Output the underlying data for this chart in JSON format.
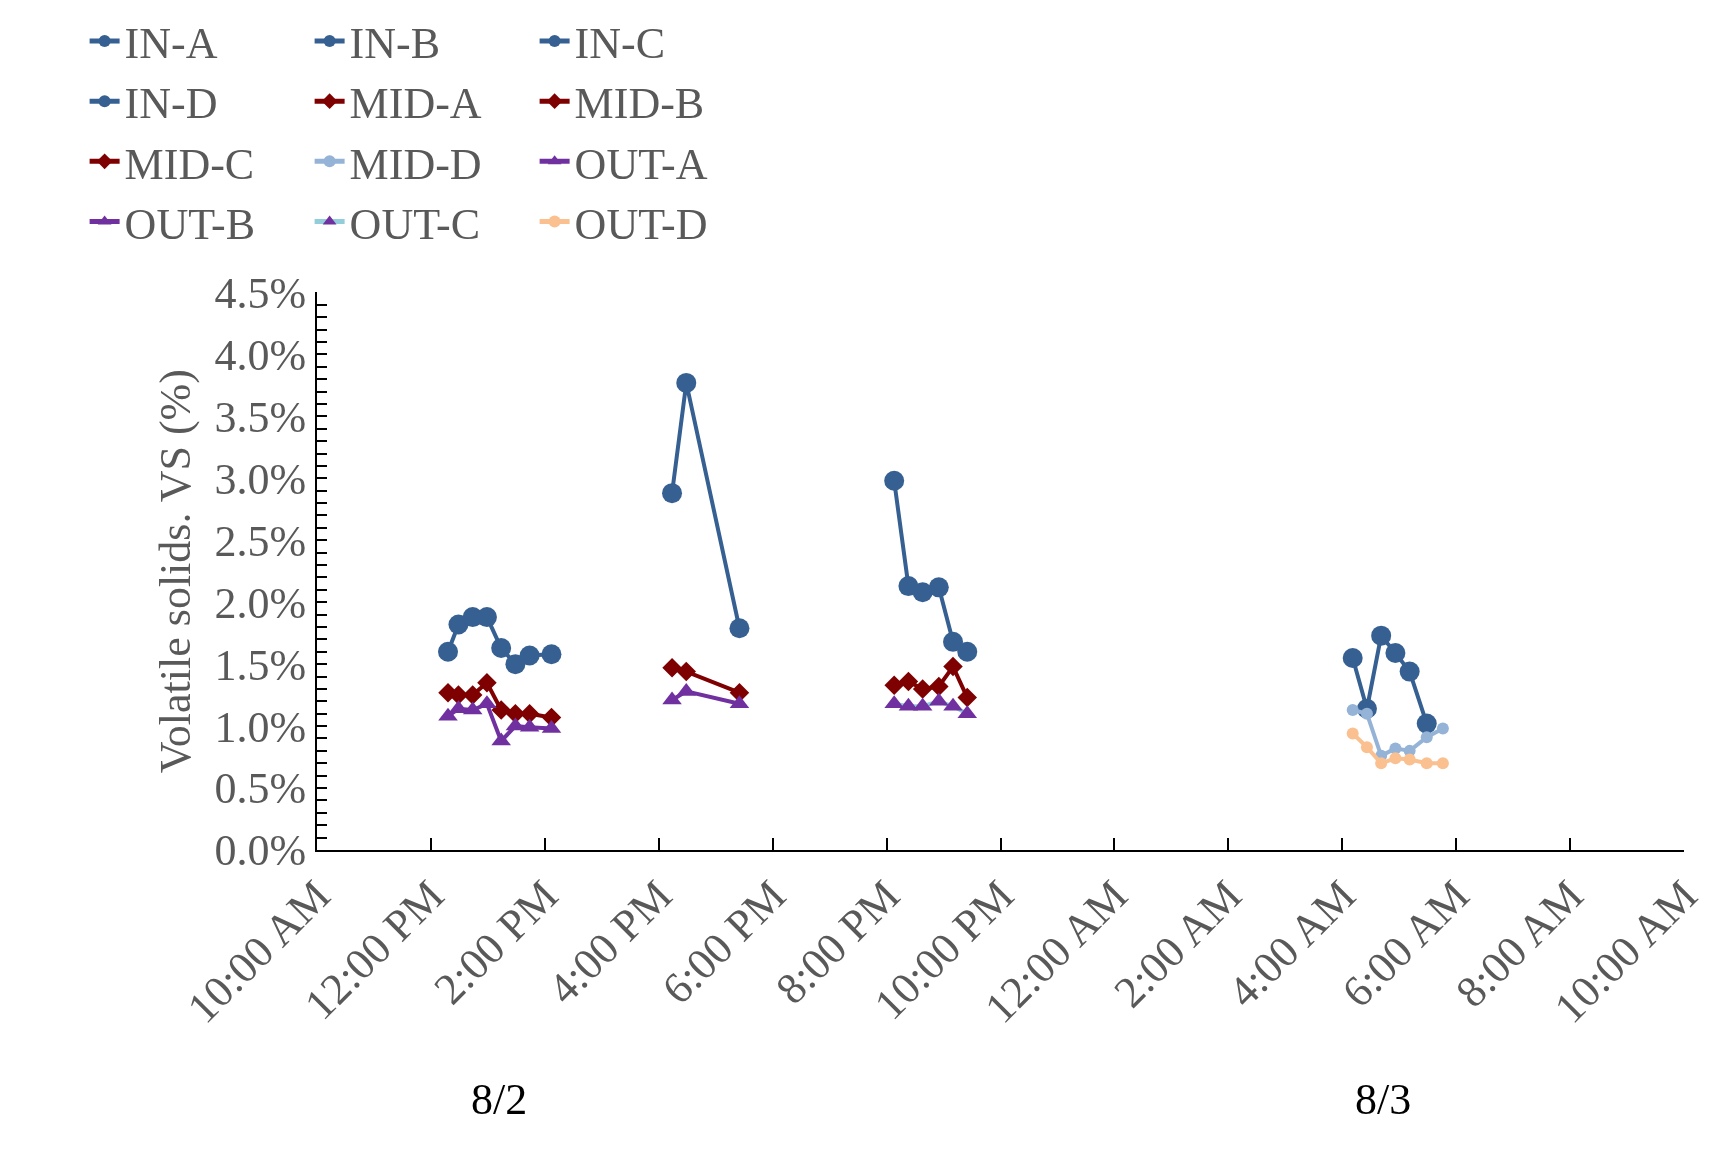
{
  "chart_data": {
    "type": "line",
    "ylabel": "Volatile solids. VS (%)",
    "xlim": [
      "--08-02T10:00",
      "--08-03T10:00"
    ],
    "xticks": [
      {
        "value": "--08-02T10:00",
        "label": "10:00 AM"
      },
      {
        "value": "--08-02T12:00",
        "label": "12:00 PM"
      },
      {
        "value": "--08-02T14:00",
        "label": "2:00 PM"
      },
      {
        "value": "--08-02T16:00",
        "label": "4:00 PM"
      },
      {
        "value": "--08-02T18:00",
        "label": "6:00 PM"
      },
      {
        "value": "--08-02T20:00",
        "label": "8:00 PM"
      },
      {
        "value": "--08-02T22:00",
        "label": "10:00 PM"
      },
      {
        "value": "--08-03T00:00",
        "label": "12:00 AM"
      },
      {
        "value": "--08-03T02:00",
        "label": "2:00 AM"
      },
      {
        "value": "--08-03T04:00",
        "label": "4:00 AM"
      },
      {
        "value": "--08-03T06:00",
        "label": "6:00 AM"
      },
      {
        "value": "--08-03T08:00",
        "label": "8:00 AM"
      },
      {
        "value": "--08-03T10:00",
        "label": "10:00 AM"
      }
    ],
    "ylim": [
      0,
      4.5
    ],
    "yticks": [
      {
        "value": 0,
        "label": "0.0%"
      },
      {
        "value": 0.1,
        "label": null
      },
      {
        "value": 0.2,
        "label": null
      },
      {
        "value": 0.3,
        "label": null
      },
      {
        "value": 0.4,
        "label": null
      },
      {
        "value": 0.5,
        "label": "0.5%"
      },
      {
        "value": 0.6,
        "label": null
      },
      {
        "value": 0.7,
        "label": null
      },
      {
        "value": 0.8,
        "label": null
      },
      {
        "value": 0.9,
        "label": null
      },
      {
        "value": 1.0,
        "label": "1.0%"
      },
      {
        "value": 1.1,
        "label": null
      },
      {
        "value": 1.2,
        "label": null
      },
      {
        "value": 1.3,
        "label": null
      },
      {
        "value": 1.4,
        "label": null
      },
      {
        "value": 1.5,
        "label": "1.5%"
      },
      {
        "value": 1.6,
        "label": null
      },
      {
        "value": 1.7,
        "label": null
      },
      {
        "value": 1.8,
        "label": null
      },
      {
        "value": 1.9,
        "label": null
      },
      {
        "value": 2.0,
        "label": "2.0%"
      },
      {
        "value": 2.1,
        "label": null
      },
      {
        "value": 2.2,
        "label": null
      },
      {
        "value": 2.3,
        "label": null
      },
      {
        "value": 2.4,
        "label": null
      },
      {
        "value": 2.5,
        "label": "2.5%"
      },
      {
        "value": 2.6,
        "label": null
      },
      {
        "value": 2.7,
        "label": null
      },
      {
        "value": 2.8,
        "label": null
      },
      {
        "value": 2.9,
        "label": null
      },
      {
        "value": 3.0,
        "label": "3.0%"
      },
      {
        "value": 3.1,
        "label": null
      },
      {
        "value": 3.2,
        "label": null
      },
      {
        "value": 3.3,
        "label": null
      },
      {
        "value": 3.4,
        "label": null
      },
      {
        "value": 3.5,
        "label": "3.5%"
      },
      {
        "value": 3.6,
        "label": null
      },
      {
        "value": 3.7,
        "label": null
      },
      {
        "value": 3.8,
        "label": null
      },
      {
        "value": 3.9,
        "label": null
      },
      {
        "value": 4.0,
        "label": "4.0%"
      },
      {
        "value": 4.1,
        "label": null
      },
      {
        "value": 4.2,
        "label": null
      },
      {
        "value": 4.3,
        "label": null
      },
      {
        "value": 4.4,
        "label": null
      },
      {
        "value": 4.5,
        "label": "4.5%"
      }
    ],
    "legend": "top",
    "line_style": "solid",
    "annotations": [
      "8/2",
      "8/3"
    ],
    "series": [
      {
        "name": "IN-A",
        "color": "#366092",
        "marker": "circle",
        "x": [
          "--08-02T12:18",
          "--08-02T12:29",
          "--08-02T12:44",
          "--08-02T12:59",
          "--08-02T13:14",
          "--08-02T13:29",
          "--08-02T13:44",
          "--08-02T14:07"
        ],
        "values": [
          1.6,
          1.82,
          1.88,
          1.88,
          1.63,
          1.5,
          1.57,
          1.58
        ]
      },
      {
        "name": "IN-B",
        "color": "#366092",
        "marker": "circle",
        "x": [
          "--08-02T16:14",
          "--08-02T16:29",
          "--08-02T17:25"
        ],
        "values": [
          2.88,
          3.77,
          1.79
        ]
      },
      {
        "name": "IN-C",
        "color": "#366092",
        "marker": "circle",
        "x": [
          "--08-02T20:08",
          "--08-02T20:23",
          "--08-02T20:38",
          "--08-02T20:55",
          "--08-02T21:10",
          "--08-02T21:25"
        ],
        "values": [
          2.98,
          2.13,
          2.08,
          2.12,
          1.68,
          1.6
        ]
      },
      {
        "name": "IN-D",
        "color": "#366092",
        "marker": "circle",
        "x": [
          "--08-03T04:11",
          "--08-03T04:26",
          "--08-03T04:41",
          "--08-03T04:56",
          "--08-03T05:11",
          "--08-03T05:29"
        ],
        "values": [
          1.55,
          1.14,
          1.73,
          1.59,
          1.44,
          1.02
        ]
      },
      {
        "name": "MID-A",
        "color": "#7f0000",
        "marker": "diamond",
        "x": [
          "--08-02T12:18",
          "--08-02T12:29",
          "--08-02T12:44",
          "--08-02T12:59",
          "--08-02T13:14",
          "--08-02T13:29",
          "--08-02T13:44",
          "--08-02T14:07"
        ],
        "values": [
          1.27,
          1.25,
          1.25,
          1.35,
          1.13,
          1.1,
          1.1,
          1.07
        ]
      },
      {
        "name": "MID-B",
        "color": "#7f0000",
        "marker": "diamond",
        "x": [
          "--08-02T16:14",
          "--08-02T16:29",
          "--08-02T17:25"
        ],
        "values": [
          1.47,
          1.44,
          1.27
        ]
      },
      {
        "name": "MID-C",
        "color": "#7f0000",
        "marker": "diamond",
        "x": [
          "--08-02T20:08",
          "--08-02T20:23",
          "--08-02T20:38",
          "--08-02T20:55",
          "--08-02T21:10",
          "--08-02T21:25"
        ],
        "values": [
          1.33,
          1.36,
          1.3,
          1.32,
          1.48,
          1.23
        ]
      },
      {
        "name": "MID-D",
        "color": "#95b3d7",
        "marker": "circle",
        "x": [
          "--08-03T04:11",
          "--08-03T04:26",
          "--08-03T04:41",
          "--08-03T04:56",
          "--08-03T05:11",
          "--08-03T05:29",
          "--08-03T05:46"
        ],
        "values": [
          1.13,
          1.1,
          0.76,
          0.82,
          0.8,
          0.91,
          0.98
        ]
      },
      {
        "name": "OUT-A",
        "color": "#7030a0",
        "marker": "triangle",
        "x": [
          "--08-02T12:18",
          "--08-02T12:29",
          "--08-02T12:44",
          "--08-02T12:59",
          "--08-02T13:14",
          "--08-02T13:29",
          "--08-02T13:44",
          "--08-02T14:07"
        ],
        "values": [
          1.08,
          1.14,
          1.13,
          1.18,
          0.88,
          1.0,
          0.99,
          0.98
        ]
      },
      {
        "name": "OUT-B",
        "color": "#7030a0",
        "marker": "triangle",
        "x": [
          "--08-02T16:14",
          "--08-02T16:29",
          "--08-02T17:25"
        ],
        "values": [
          1.21,
          1.28,
          1.18
        ]
      },
      {
        "name": "OUT-C",
        "color": "#92cddc",
        "colors": [
          "#7030a0",
          "#7030a0",
          "#7030a0",
          "#7030a0",
          "#7030a0",
          "#7030a0"
        ],
        "marker": "triangle",
        "x": [
          "--08-02T20:08",
          "--08-02T20:23",
          "--08-02T20:38",
          "--08-02T20:55",
          "--08-02T21:10",
          "--08-02T21:25"
        ],
        "values": [
          1.18,
          1.16,
          1.16,
          1.2,
          1.16,
          1.1
        ]
      },
      {
        "name": "OUT-D",
        "color": "#fac090",
        "marker": "circle",
        "x": [
          "--08-03T04:11",
          "--08-03T04:26",
          "--08-03T04:41",
          "--08-03T04:56",
          "--08-03T05:11",
          "--08-03T05:29",
          "--08-03T05:46"
        ],
        "values": [
          0.94,
          0.83,
          0.7,
          0.74,
          0.73,
          0.7,
          0.7
        ]
      }
    ]
  }
}
